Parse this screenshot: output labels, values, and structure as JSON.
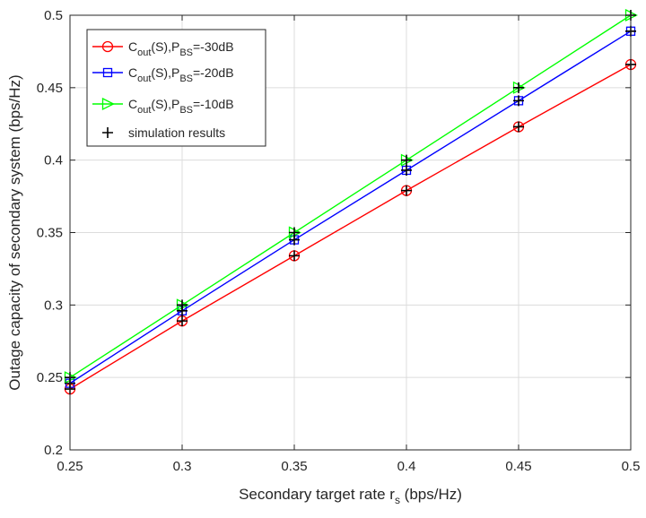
{
  "chart_data": {
    "type": "line",
    "title": "",
    "xlabel": "Secondary target rate r",
    "xlabel_sub": "s",
    "xlabel_unit": " (bps/Hz)",
    "ylabel": "Outage capacity of secondary system (bps/Hz)",
    "xlim": [
      0.25,
      0.5
    ],
    "ylim": [
      0.2,
      0.5
    ],
    "xticks": [
      0.25,
      0.3,
      0.35,
      0.4,
      0.45,
      0.5
    ],
    "yticks": [
      0.2,
      0.25,
      0.3,
      0.35,
      0.4,
      0.45,
      0.5
    ],
    "xtick_labels": [
      "0.25",
      "0.3",
      "0.35",
      "0.4",
      "0.45",
      "0.5"
    ],
    "ytick_labels": [
      "0.2",
      "0.25",
      "0.3",
      "0.35",
      "0.4",
      "0.45",
      "0.5"
    ],
    "grid": true,
    "legend_position": "top-left",
    "x": [
      0.25,
      0.3,
      0.35,
      0.4,
      0.45,
      0.5
    ],
    "series": [
      {
        "legend": {
          "base": "C",
          "sub1": "out",
          "mid": "(S),P",
          "sub2": "BS",
          "tail": "=-30dB"
        },
        "color": "#ff0000",
        "marker": "circle",
        "values": [
          0.242,
          0.289,
          0.334,
          0.379,
          0.423,
          0.466
        ]
      },
      {
        "legend": {
          "base": "C",
          "sub1": "out",
          "mid": "(S),P",
          "sub2": "BS",
          "tail": "=-20dB"
        },
        "color": "#0000ff",
        "marker": "square",
        "values": [
          0.246,
          0.296,
          0.345,
          0.393,
          0.441,
          0.489
        ]
      },
      {
        "legend": {
          "base": "C",
          "sub1": "out",
          "mid": "(S),P",
          "sub2": "BS",
          "tail": "=-10dB"
        },
        "color": "#00ff00",
        "marker": "triangle-right",
        "values": [
          0.25,
          0.3,
          0.35,
          0.4,
          0.45,
          0.5
        ]
      }
    ],
    "simulation": {
      "label": "simulation results",
      "color": "#000000",
      "marker": "plus",
      "series_values": [
        [
          0.242,
          0.289,
          0.334,
          0.379,
          0.423,
          0.466
        ],
        [
          0.246,
          0.296,
          0.345,
          0.393,
          0.441,
          0.489
        ],
        [
          0.25,
          0.3,
          0.35,
          0.4,
          0.45,
          0.5
        ]
      ]
    }
  }
}
